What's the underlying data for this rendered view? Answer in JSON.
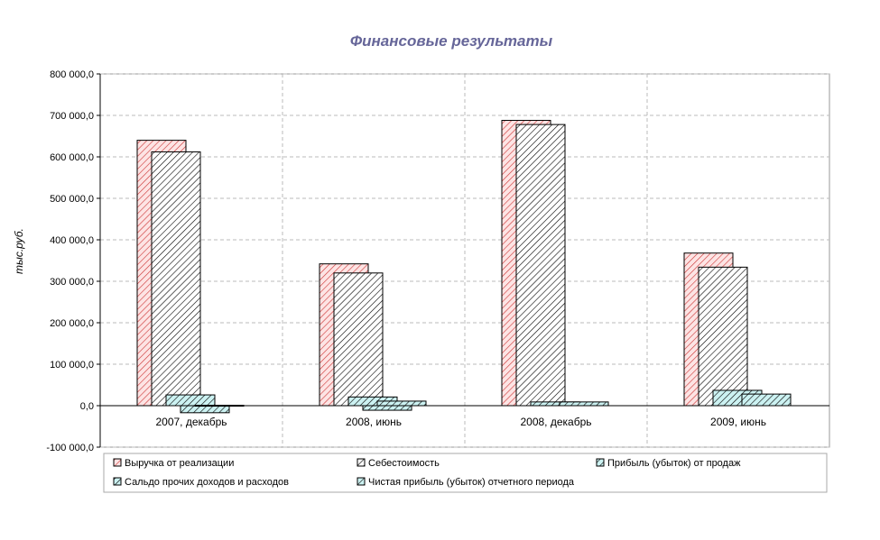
{
  "chart_data": {
    "type": "bar",
    "title": "Финансовые результаты",
    "ylabel": "тыс.руб.",
    "ylim": [
      -100000,
      800000
    ],
    "ytick_step": 100000,
    "y_ticks": [
      "-100 000,0",
      "0,0",
      "100 000,0",
      "200 000,0",
      "300 000,0",
      "400 000,0",
      "500 000,0",
      "600 000,0",
      "700 000,0",
      "800 000,0"
    ],
    "categories": [
      "2007, декабрь",
      "2008, июнь",
      "2008, декабрь",
      "2009, июнь"
    ],
    "series": [
      {
        "name": "Выручка от реализации",
        "values": [
          640000,
          342000,
          688000,
          368000
        ],
        "color": "#cc3333",
        "fill": "#fde4e4"
      },
      {
        "name": "Себестоимость",
        "values": [
          612000,
          320000,
          678000,
          334000
        ],
        "color": "#000000",
        "fill": "#ffffff"
      },
      {
        "name": "Прибыль (убыток) от продаж",
        "values": [
          26000,
          21000,
          9000,
          37000
        ],
        "color": "#000000",
        "fill": "#ccf2f2"
      },
      {
        "name": "Сальдо прочих доходов и расходов",
        "values": [
          -17000,
          -11000,
          0,
          0
        ],
        "color": "#000000",
        "fill": "#ccf2f2"
      },
      {
        "name": "Чистая прибыль (убыток) отчетного периода",
        "values": [
          1000,
          11000,
          9000,
          28000
        ],
        "color": "#000000",
        "fill": "#ccf2f2"
      }
    ],
    "grid": true,
    "legend_position": "bottom",
    "negative_tick_color": "#cc0000"
  }
}
